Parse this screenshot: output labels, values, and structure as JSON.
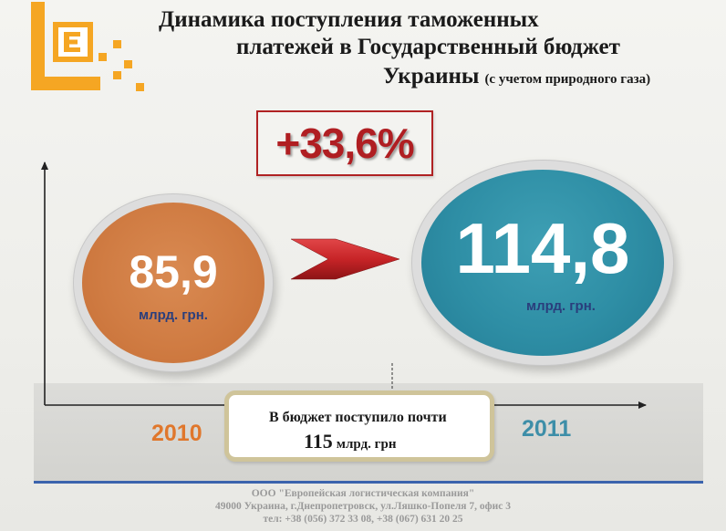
{
  "title": {
    "line1": "Динамика поступления таможенных",
    "line2": "платежей в Государственный бюджет",
    "line3": "Украины",
    "line3_sub": "(с учетом природного газа)"
  },
  "growth_label": "+33,6%",
  "values": [
    {
      "year": "2010",
      "value": "85,9",
      "unit": "млрд. грн.",
      "color": "#d07c43"
    },
    {
      "year": "2011",
      "value": "114,8",
      "unit": "млрд. грн.",
      "color": "#2e8ea5"
    }
  ],
  "info": {
    "line1": "В бюджет поступило почти",
    "number": "115",
    "unit": "млрд. грн"
  },
  "footer": {
    "company": "ООО \"Европейская логистическая компания\"",
    "address": "49000 Украина, г.Днепропетровск, ул.Ляшко-Попеля 7, офис 3",
    "phone": "тел: +38 (056) 372 33 08, +38 (067) 631 20 25"
  },
  "colors": {
    "accent_orange": "#f5a623",
    "accent_red": "#b01e22",
    "accent_blue": "#3b63ad"
  }
}
